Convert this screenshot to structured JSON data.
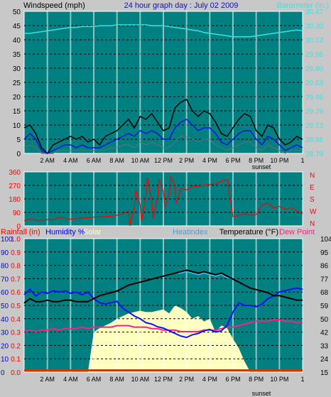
{
  "header": {
    "left_label": "Windspeed (mph)",
    "title": "24 hour graph day : July 02 2009",
    "right_label": "Barometer (in.)"
  },
  "x_ticks": [
    "2 AM",
    "4 AM",
    "6 AM",
    "8 AM",
    "10 AM",
    "12 PM",
    "2 PM",
    "4 PM",
    "6 PM",
    "8 PM",
    "10 PM",
    "1"
  ],
  "sunset_label": "sunset",
  "panel3_labels": {
    "rainfall": "Rainfall (in)",
    "humidity": "Humidity %",
    "solar": "Solar",
    "heatindex": "Heatindex",
    "temperature": "Temperature (°F)",
    "dewpoint": "Dew Point"
  },
  "colors": {
    "background": "#c8c8c8",
    "plot_bg": "#008080",
    "wind_avg": "#1010e0",
    "wind_gust": "#000000",
    "wind_low": "#707070",
    "barometer": "#40e0e0",
    "direction": "#ff0000",
    "humidity": "#1010ff",
    "solar": "#ffffc0",
    "temperature": "#000000",
    "heatindex": "#40c0e0",
    "dewpoint": "#ff2080",
    "rain_axis": "#ff0000",
    "hum_axis": "#0000ff",
    "temp_axis": "#000000"
  },
  "chart_data": [
    {
      "type": "line",
      "name": "wind-barometer",
      "hours": [
        0,
        0.5,
        1,
        1.5,
        2,
        2.5,
        3,
        3.5,
        4,
        4.5,
        5,
        5.5,
        6,
        6.5,
        7,
        7.5,
        8,
        8.5,
        9,
        9.5,
        10,
        10.5,
        11,
        11.5,
        12,
        12.5,
        13,
        13.5,
        14,
        14.5,
        15,
        15.5,
        16,
        16.5,
        17,
        17.5,
        18,
        18.5,
        19,
        19.5,
        20,
        20.5,
        21,
        21.5,
        22,
        22.5,
        23,
        23.5,
        24
      ],
      "y_left_ticks": [
        "0",
        "5",
        "10",
        "15",
        "20",
        "25",
        "30",
        "35",
        "40",
        "45",
        "50"
      ],
      "y_left_range": [
        0,
        50
      ],
      "y_right_ticks": [
        "28.79",
        "28.96",
        "29.13",
        "29.29",
        "29.46",
        "29.63",
        "29.80",
        "29.96",
        "30.13",
        "30.30",
        "30.47"
      ],
      "y_right_range": [
        28.79,
        30.47
      ],
      "series": [
        {
          "key": "gust",
          "values": [
            9,
            10,
            7,
            2,
            0,
            3,
            4,
            5,
            6,
            5,
            6,
            4,
            5,
            3,
            6,
            7,
            8,
            10,
            12,
            9,
            13,
            12,
            14,
            11,
            8,
            9,
            16,
            18,
            19,
            15,
            13,
            15,
            14,
            11,
            7,
            6,
            9,
            12,
            14,
            13,
            8,
            6,
            10,
            9,
            5,
            3,
            4,
            6,
            5
          ]
        },
        {
          "key": "avg",
          "values": [
            5,
            7,
            5,
            1,
            0,
            1,
            2,
            3,
            3,
            2,
            3,
            2,
            2,
            2,
            3,
            4,
            5,
            6,
            7,
            6,
            8,
            7,
            8,
            7,
            5,
            5,
            9,
            11,
            12,
            10,
            8,
            9,
            9,
            7,
            4,
            3,
            5,
            7,
            8,
            8,
            5,
            3,
            6,
            5,
            3,
            1,
            2,
            3,
            2
          ]
        },
        {
          "key": "low",
          "values": [
            2,
            3,
            2,
            0,
            0,
            0,
            1,
            1,
            1,
            1,
            1,
            1,
            1,
            1,
            1,
            2,
            2,
            3,
            3,
            2,
            4,
            3,
            4,
            3,
            2,
            2,
            4,
            6,
            6,
            5,
            4,
            5,
            5,
            3,
            2,
            1,
            2,
            3,
            4,
            4,
            2,
            1,
            3,
            2,
            1,
            0,
            1,
            1,
            1
          ]
        },
        {
          "key": "barometer",
          "values": [
            30.21,
            30.21,
            30.22,
            30.23,
            30.24,
            30.25,
            30.26,
            30.27,
            30.28,
            30.28,
            30.29,
            30.29,
            30.29,
            30.3,
            30.3,
            30.3,
            30.31,
            30.31,
            30.31,
            30.31,
            30.31,
            30.31,
            30.3,
            30.3,
            30.3,
            30.29,
            30.28,
            30.27,
            30.26,
            30.25,
            30.24,
            30.22,
            30.21,
            30.2,
            30.19,
            30.18,
            30.17,
            30.17,
            30.17,
            30.17,
            30.18,
            30.19,
            30.2,
            30.21,
            30.22,
            30.23,
            30.24,
            30.25,
            30.24
          ]
        }
      ]
    },
    {
      "type": "line",
      "name": "wind-direction",
      "hours": [
        0,
        0.5,
        1,
        1.5,
        2,
        2.5,
        3,
        3.5,
        4,
        4.5,
        5,
        5.5,
        6,
        6.5,
        7,
        7.5,
        8,
        8.5,
        9,
        9.5,
        10,
        10.5,
        11,
        11.5,
        12,
        12.5,
        13,
        13.5,
        14,
        14.5,
        15,
        15.5,
        16,
        16.5,
        17,
        17.5,
        18,
        18.5,
        19,
        19.5,
        20,
        20.5,
        21,
        21.5,
        22,
        22.5,
        23,
        23.5,
        24
      ],
      "y_ticks": [
        "0",
        "90",
        "180",
        "270",
        "360"
      ],
      "y_range": [
        0,
        360
      ],
      "y_right_labels": [
        "N",
        "W",
        "S",
        "E",
        "N"
      ],
      "series": [
        {
          "key": "direction",
          "values": [
            35,
            45,
            40,
            38,
            42,
            40,
            55,
            50,
            45,
            48,
            52,
            55,
            58,
            60,
            62,
            65,
            70,
            80,
            100,
            120,
            140,
            200,
            160,
            190,
            230,
            210,
            260,
            250,
            240,
            260,
            265,
            270,
            275,
            280,
            300,
            310,
            60,
            70,
            80,
            70,
            75,
            140,
            150,
            120,
            130,
            110,
            120,
            100,
            80
          ]
        }
      ]
    },
    {
      "type": "line",
      "name": "humidity-temperature",
      "hours": [
        0,
        0.5,
        1,
        1.5,
        2,
        2.5,
        3,
        3.5,
        4,
        4.5,
        5,
        5.5,
        6,
        6.5,
        7,
        7.5,
        8,
        8.5,
        9,
        9.5,
        10,
        10.5,
        11,
        11.5,
        12,
        12.5,
        13,
        13.5,
        14,
        14.5,
        15,
        15.5,
        16,
        16.5,
        17,
        17.5,
        18,
        18.5,
        19,
        19.5,
        20,
        20.5,
        21,
        21.5,
        22,
        22.5,
        23,
        23.5,
        24
      ],
      "y_hum_ticks": [
        "0",
        "10",
        "20",
        "30",
        "40",
        "50",
        "60",
        "70",
        "80",
        "90",
        "100"
      ],
      "y_hum_range": [
        0,
        100
      ],
      "y_rain_ticks": [
        "0.0",
        "0.1",
        "0.2",
        "0.3",
        "0.4",
        "0.5",
        "0.6",
        "0.7",
        "0.8",
        "0.9",
        "1.0"
      ],
      "y_temp_ticks": [
        "15",
        "24",
        "33",
        "42",
        "50",
        "59",
        "68",
        "77",
        "86",
        "95",
        "104"
      ],
      "y_temp_range": [
        15,
        104
      ],
      "series": [
        {
          "key": "humidity",
          "values": [
            58,
            62,
            57,
            60,
            59,
            61,
            60,
            61,
            59,
            60,
            58,
            60,
            55,
            52,
            51,
            52,
            53,
            48,
            45,
            42,
            40,
            37,
            36,
            34,
            33,
            31,
            29,
            27,
            26,
            28,
            29,
            31,
            32,
            30,
            31,
            35,
            45,
            52,
            50,
            50,
            49,
            51,
            55,
            57,
            60,
            61,
            62,
            63,
            62
          ]
        },
        {
          "key": "temperature",
          "values": [
            61,
            64,
            62,
            62,
            63,
            62,
            62,
            63,
            63,
            62,
            62,
            62,
            64,
            66,
            67,
            68,
            69,
            71,
            73,
            74,
            75,
            76,
            77,
            78,
            79,
            80,
            81,
            82,
            83,
            82,
            81,
            82,
            81,
            80,
            81,
            79,
            77,
            75,
            73,
            71,
            70,
            69,
            68,
            66,
            66,
            65,
            64,
            63,
            63
          ]
        },
        {
          "key": "heatindex",
          "values": [
            61,
            64,
            62,
            62,
            63,
            62,
            62,
            63,
            63,
            62,
            62,
            62,
            64,
            66,
            67,
            68,
            69,
            71,
            73,
            74,
            75,
            76,
            77,
            78,
            79,
            80,
            81,
            81,
            82,
            81,
            80,
            81,
            80,
            79,
            80,
            78,
            77,
            75,
            73,
            71,
            70,
            69,
            68,
            66,
            66,
            65,
            64,
            63,
            63
          ]
        },
        {
          "key": "dewpoint",
          "values": [
            42,
            43,
            42,
            43,
            43,
            44,
            43,
            44,
            44,
            44,
            45,
            44,
            45,
            45,
            45,
            45,
            46,
            46,
            46,
            45,
            45,
            45,
            44,
            44,
            43,
            43,
            43,
            42,
            42,
            42,
            42,
            43,
            43,
            43,
            44,
            45,
            45,
            46,
            47,
            48,
            49,
            49,
            49,
            50,
            50,
            49,
            49,
            48,
            48
          ]
        },
        {
          "key": "solar",
          "values": [
            0,
            0,
            0,
            0,
            0,
            0,
            0,
            0,
            0,
            0,
            0,
            0,
            30,
            33,
            35,
            37,
            40,
            42,
            44,
            45,
            46,
            45,
            45,
            46,
            47,
            44,
            50,
            48,
            45,
            40,
            42,
            38,
            40,
            30,
            35,
            33,
            25,
            18,
            8,
            0,
            0,
            0,
            0,
            0,
            0,
            0,
            0,
            0,
            0
          ]
        }
      ]
    }
  ]
}
